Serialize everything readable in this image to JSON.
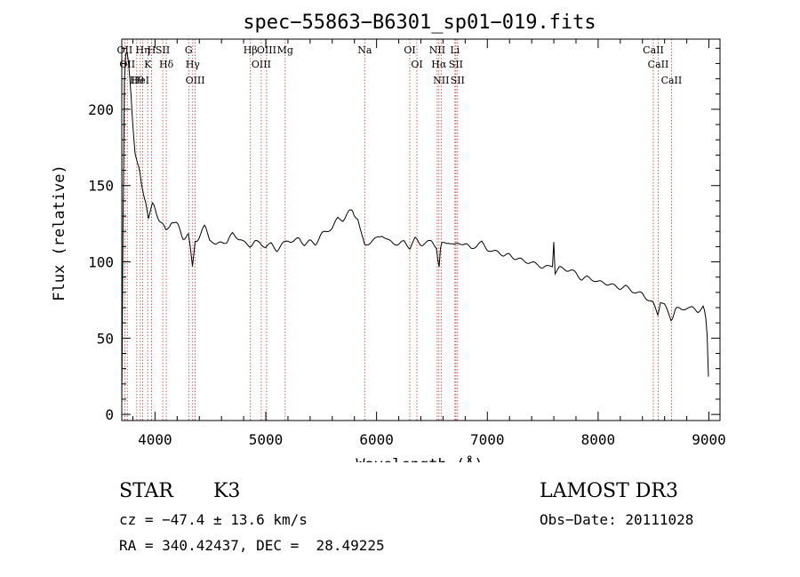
{
  "chart_data": {
    "type": "line",
    "title": "spec−55863−B6301_sp01−019.fits",
    "xlabel": "Wavelength (Å)",
    "ylabel": "Flux (relative)",
    "xlim": [
      3700,
      9100
    ],
    "ylim": [
      -4,
      246
    ],
    "x_ticks": [
      4000,
      5000,
      6000,
      7000,
      8000,
      9000
    ],
    "y_ticks": [
      0,
      50,
      100,
      150,
      200
    ],
    "spectrum": {
      "wavelength": [
        3700,
        3720,
        3740,
        3760,
        3780,
        3800,
        3820,
        3840,
        3860,
        3880,
        3900,
        3920,
        3940,
        3960,
        3980,
        4000,
        4050,
        4100,
        4150,
        4200,
        4250,
        4300,
        4340,
        4360,
        4400,
        4450,
        4500,
        4550,
        4600,
        4650,
        4700,
        4750,
        4800,
        4860,
        4900,
        4950,
        5000,
        5050,
        5100,
        5150,
        5200,
        5250,
        5300,
        5350,
        5400,
        5450,
        5500,
        5550,
        5600,
        5650,
        5700,
        5750,
        5780,
        5800,
        5830,
        5860,
        5893,
        5950,
        6000,
        6050,
        6100,
        6150,
        6200,
        6250,
        6300,
        6350,
        6400,
        6450,
        6500,
        6540,
        6563,
        6580,
        6600,
        6650,
        6700,
        6750,
        6800,
        6850,
        6900,
        6950,
        7000,
        7050,
        7100,
        7150,
        7200,
        7250,
        7300,
        7350,
        7400,
        7450,
        7500,
        7550,
        7590,
        7600,
        7610,
        7650,
        7700,
        7750,
        7800,
        7850,
        7900,
        7950,
        8000,
        8050,
        8100,
        8150,
        8200,
        8250,
        8300,
        8350,
        8400,
        8450,
        8500,
        8542,
        8560,
        8600,
        8662,
        8700,
        8750,
        8800,
        8850,
        8900,
        8950,
        8970,
        8990,
        9000
      ],
      "flux": [
        5,
        210,
        238,
        230,
        215,
        190,
        170,
        162,
        158,
        150,
        145,
        140,
        128,
        132,
        138,
        136,
        128,
        120,
        130,
        125,
        118,
        120,
        95,
        115,
        118,
        122,
        115,
        110,
        113,
        112,
        118,
        115,
        112,
        110,
        113,
        112,
        110,
        112,
        108,
        112,
        115,
        114,
        116,
        112,
        114,
        112,
        118,
        120,
        122,
        128,
        127,
        132,
        133,
        130,
        128,
        118,
        110,
        113,
        115,
        118,
        114,
        113,
        112,
        114,
        110,
        116,
        112,
        113,
        114,
        110,
        95,
        111,
        112,
        113,
        110,
        112,
        111,
        108,
        110,
        112,
        108,
        106,
        107,
        104,
        105,
        103,
        102,
        101,
        100,
        99,
        97,
        97,
        98,
        115,
        93,
        96,
        95,
        94,
        92,
        88,
        89,
        88,
        86,
        86,
        85,
        84,
        83,
        84,
        82,
        80,
        80,
        76,
        73,
        66,
        75,
        72,
        62,
        70,
        68,
        70,
        69,
        67,
        70,
        63,
        45,
        8
      ]
    },
    "line_markers": [
      {
        "wavelength": 3727,
        "label": "OII"
      },
      {
        "wavelength": 3750,
        "label": "OII"
      },
      {
        "wavelength": 3835,
        "label": "Hθ"
      },
      {
        "wavelength": 3868,
        "label": "HeI"
      },
      {
        "wavelength": 3889,
        "label": "Hη"
      },
      {
        "wavelength": 3934,
        "label": "K"
      },
      {
        "wavelength": 3969,
        "label": "H"
      },
      {
        "wavelength": 4070,
        "label": "SII"
      },
      {
        "wavelength": 4102,
        "label": "Hδ"
      },
      {
        "wavelength": 4304,
        "label": "G"
      },
      {
        "wavelength": 4340,
        "label": "Hγ"
      },
      {
        "wavelength": 4363,
        "label": "OIII"
      },
      {
        "wavelength": 4861,
        "label": "Hβ"
      },
      {
        "wavelength": 4959,
        "label": "OIII"
      },
      {
        "wavelength": 5007,
        "label": "OIII"
      },
      {
        "wavelength": 5175,
        "label": "Mg"
      },
      {
        "wavelength": 5893,
        "label": "Na"
      },
      {
        "wavelength": 6300,
        "label": "OI"
      },
      {
        "wavelength": 6364,
        "label": "OI"
      },
      {
        "wavelength": 6548,
        "label": "NII"
      },
      {
        "wavelength": 6563,
        "label": "Hα"
      },
      {
        "wavelength": 6583,
        "label": "NII"
      },
      {
        "wavelength": 6707,
        "label": "Li"
      },
      {
        "wavelength": 6716,
        "label": "SII"
      },
      {
        "wavelength": 6731,
        "label": "SII"
      },
      {
        "wavelength": 8498,
        "label": "CaII"
      },
      {
        "wavelength": 8542,
        "label": "CaII"
      },
      {
        "wavelength": 8662,
        "label": "CaII"
      }
    ]
  },
  "info": {
    "class_label": "STAR",
    "subclass": "K3",
    "redshift": "cz = −47.4 ± 13.6 km/s",
    "coords": "RA = 340.42437, DEC =  28.49225",
    "survey": "LAMOST DR3",
    "obs_date": "Obs−Date: 20111028"
  }
}
